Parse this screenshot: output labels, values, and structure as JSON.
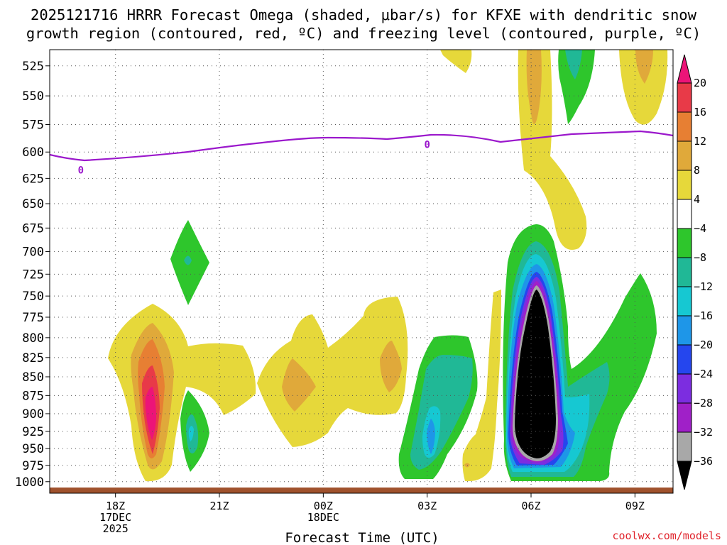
{
  "chart_data": {
    "type": "heatmap",
    "title_lines": [
      "2025121716 HRRR Forecast Omega (shaded, μbar/s) for KFXE with dendritic snow",
      "growth region (contoured, red, ºC) and freezing level (contoured, purple, ºC)"
    ],
    "xlabel": "Forecast Time (UTC)",
    "credit": "coolwx.com/models",
    "x_domain_hours": [
      -1.9,
      16.1
    ],
    "x_ticks": [
      {
        "hour": 0,
        "lines": [
          "18Z",
          "17DEC",
          "2025"
        ]
      },
      {
        "hour": 3,
        "lines": [
          "21Z"
        ]
      },
      {
        "hour": 6,
        "lines": [
          "00Z",
          "18DEC"
        ]
      },
      {
        "hour": 9,
        "lines": [
          "03Z"
        ]
      },
      {
        "hour": 12,
        "lines": [
          "06Z"
        ]
      },
      {
        "hour": 15,
        "lines": [
          "09Z"
        ]
      }
    ],
    "y_ticks_hpa": [
      525,
      550,
      575,
      600,
      625,
      650,
      675,
      700,
      725,
      750,
      775,
      800,
      825,
      850,
      875,
      900,
      925,
      950,
      975,
      1000
    ],
    "y_range_hpa": [
      512,
      1018
    ],
    "colorbar": {
      "tick_labels": [
        "20",
        "16",
        "12",
        "8",
        "4",
        "−4",
        "−8",
        "−12",
        "−16",
        "−20",
        "−24",
        "−28",
        "−32",
        "−36"
      ],
      "colors": [
        "#ec1478",
        "#e83a48",
        "#e77f33",
        "#e0a93a",
        "#e6d83a",
        "#ffffff",
        "#2ec62c",
        "#20b896",
        "#16c8d2",
        "#1e96e8",
        "#2546ee",
        "#7c2de0",
        "#a020c8",
        "#a8a8a8",
        "#000000"
      ]
    },
    "series": [
      {
        "name": "freezing level (0 ºC)",
        "color": "#9b18cc",
        "contour_label": "0",
        "points": [
          {
            "hour": -1.9,
            "hpa": 613
          },
          {
            "hour": -1,
            "hpa": 617
          },
          {
            "hour": 2,
            "hpa": 611
          },
          {
            "hour": 6,
            "hpa": 596
          },
          {
            "hour": 8,
            "hpa": 597
          },
          {
            "hour": 9,
            "hpa": 593
          },
          {
            "hour": 11,
            "hpa": 600
          },
          {
            "hour": 15,
            "hpa": 590
          },
          {
            "hour": 16.1,
            "hpa": 592
          }
        ],
        "label_points": [
          {
            "hour": -1,
            "hpa": 617
          },
          {
            "hour": 9,
            "hpa": 593
          }
        ]
      }
    ]
  }
}
